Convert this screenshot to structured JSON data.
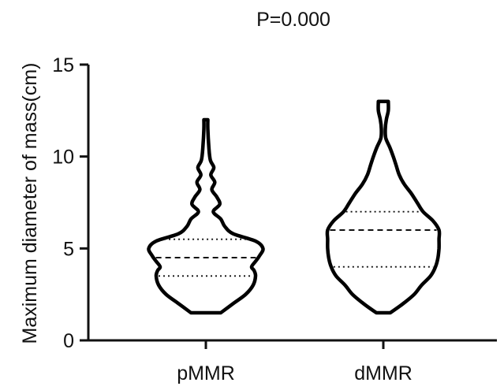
{
  "chart_data": {
    "type": "violin",
    "title": "P=0.000",
    "xlabel": "",
    "ylabel": "Maximum diameter of mass(cm)",
    "ylim": [
      0,
      15
    ],
    "yticks": [
      0,
      5,
      10,
      15
    ],
    "grid": false,
    "legend": "none",
    "categories": [
      "pMMR",
      "dMMR"
    ],
    "series": [
      {
        "category": "pMMR",
        "min": 1.5,
        "max": 12,
        "q1": 3.5,
        "median": 4.5,
        "q3": 5.5,
        "profile": [
          [
            1.5,
            0.3
          ],
          [
            2.0,
            0.55
          ],
          [
            2.5,
            0.8
          ],
          [
            3.0,
            0.95
          ],
          [
            3.5,
            1.0
          ],
          [
            3.8,
            0.97
          ],
          [
            4.0,
            0.92
          ],
          [
            4.3,
            1.0
          ],
          [
            4.6,
            1.08
          ],
          [
            5.0,
            1.15
          ],
          [
            5.4,
            1.0
          ],
          [
            5.8,
            0.55
          ],
          [
            6.2,
            0.38
          ],
          [
            6.6,
            0.3
          ],
          [
            7.0,
            0.15
          ],
          [
            7.4,
            0.28
          ],
          [
            7.8,
            0.22
          ],
          [
            8.2,
            0.12
          ],
          [
            8.6,
            0.18
          ],
          [
            9.0,
            0.1
          ],
          [
            9.4,
            0.16
          ],
          [
            9.8,
            0.09
          ],
          [
            10.5,
            0.06
          ],
          [
            11.5,
            0.04
          ],
          [
            12.0,
            0.04
          ]
        ]
      },
      {
        "category": "dMMR",
        "min": 1.5,
        "max": 13,
        "q1": 4,
        "median": 6,
        "q3": 7,
        "profile": [
          [
            1.5,
            0.14
          ],
          [
            2.0,
            0.4
          ],
          [
            2.5,
            0.62
          ],
          [
            3.0,
            0.77
          ],
          [
            3.5,
            0.95
          ],
          [
            4.0,
            1.05
          ],
          [
            4.5,
            1.1
          ],
          [
            5.0,
            1.12
          ],
          [
            5.5,
            1.12
          ],
          [
            6.0,
            1.12
          ],
          [
            6.5,
            1.0
          ],
          [
            7.0,
            0.8
          ],
          [
            7.5,
            0.68
          ],
          [
            8.0,
            0.56
          ],
          [
            8.5,
            0.42
          ],
          [
            9.0,
            0.32
          ],
          [
            9.5,
            0.26
          ],
          [
            10.0,
            0.2
          ],
          [
            10.5,
            0.13
          ],
          [
            11.0,
            0.05
          ],
          [
            11.5,
            0.04
          ],
          [
            12.0,
            0.06
          ],
          [
            12.5,
            0.1
          ],
          [
            13.0,
            0.1
          ]
        ]
      }
    ]
  }
}
